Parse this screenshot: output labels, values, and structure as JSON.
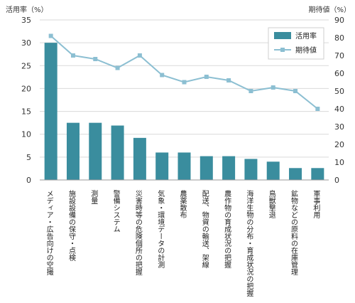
{
  "chart_data": {
    "type": "bar",
    "left_axis_title": "活用率（%）",
    "right_axis_title": "期待値（%）",
    "categories": [
      "メディア・広告向けの空撮",
      "施設設備の保守・点検",
      "測量",
      "警備システム",
      "災害時等の危険個所の把握",
      "気象・環境データの計測",
      "農薬散布",
      "配送、物資の輸送、架線",
      "農作物の育成状況の把握",
      "海洋生物の分布・育成状況の把握",
      "鳥獣撃退",
      "鉱物などの原料の在庫管理",
      "軍事利用"
    ],
    "series": [
      {
        "name": "活用率",
        "type": "bar",
        "axis": "left",
        "color": "#3a8d9e",
        "values": [
          30.0,
          12.5,
          12.5,
          11.9,
          9.2,
          6.0,
          6.0,
          5.2,
          5.2,
          4.6,
          4.0,
          2.6,
          2.6
        ]
      },
      {
        "name": "期待値",
        "type": "line",
        "axis": "right",
        "color": "#8cbfd2",
        "values": [
          81,
          70,
          68,
          63,
          70,
          59,
          55,
          58,
          56,
          50,
          52,
          50,
          40
        ]
      }
    ],
    "left_ylim": [
      0,
      35
    ],
    "left_ticks": [
      0,
      5,
      10,
      15,
      20,
      25,
      30,
      35
    ],
    "right_ylim": [
      0,
      90
    ],
    "right_ticks": [
      0,
      10,
      20,
      30,
      40,
      50,
      60,
      70,
      80,
      90
    ],
    "grid": true,
    "legend_position": "top-right"
  }
}
